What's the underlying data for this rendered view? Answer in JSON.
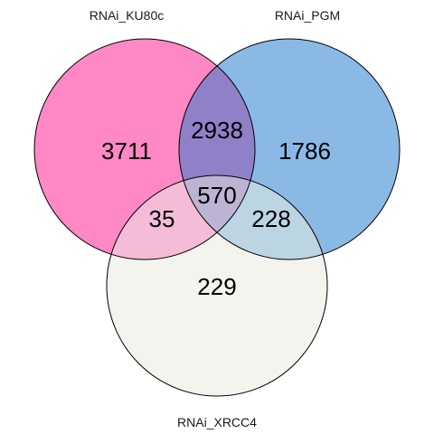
{
  "sets": [
    {
      "key": "ku80c",
      "label": "RNAi_KU80c",
      "color": "#ff88c5"
    },
    {
      "key": "pgm",
      "label": "RNAi_PGM",
      "color": "#8bb9e6"
    },
    {
      "key": "xrcc4",
      "label": "RNAi_XRCC4",
      "color": "#f4f4ee"
    }
  ],
  "regions": {
    "ku80c_only": "3711",
    "pgm_only": "1786",
    "xrcc4_only": "229",
    "ku80c_pgm": "2938",
    "ku80c_xrcc4": "35",
    "pgm_xrcc4": "228",
    "all_three": "570"
  },
  "overlap_colors": {
    "ku80c_pgm": "#9080c8",
    "ku80c_xrcc4": "#f4bcd6",
    "pgm_xrcc4": "#bcd5e2",
    "all_three": "#bdb3d3"
  }
}
